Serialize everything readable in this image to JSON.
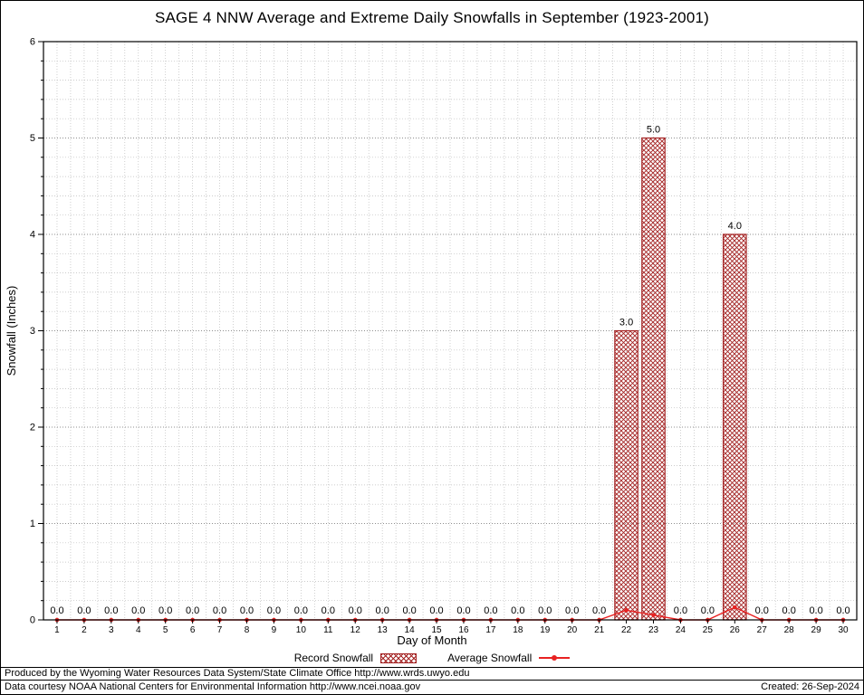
{
  "title": "SAGE 4 NNW Average and Extreme Daily Snowfalls in September (1923-2001)",
  "colors": {
    "bar_stroke": "#a32222",
    "line": "#e82222",
    "grid_minor": "#bcbcbc",
    "grid_major": "#8f8f8f",
    "axis": "#000000"
  },
  "chart_data": {
    "type": "bar",
    "title": "SAGE 4 NNW Average and Extreme Daily Snowfalls in September (1923-2001)",
    "xlabel": "Day of Month",
    "ylabel": "Snowfall (Inches)",
    "ylim": [
      0,
      6
    ],
    "y_major_step": 1,
    "y_minor_step": 0.2,
    "grid": true,
    "legend_position": "bottom",
    "categories": [
      1,
      2,
      3,
      4,
      5,
      6,
      7,
      8,
      9,
      10,
      11,
      12,
      13,
      14,
      15,
      16,
      17,
      18,
      19,
      20,
      21,
      22,
      23,
      24,
      25,
      26,
      27,
      28,
      29,
      30
    ],
    "series": [
      {
        "name": "Record Snowfall",
        "type": "bar",
        "values": [
          0,
          0,
          0,
          0,
          0,
          0,
          0,
          0,
          0,
          0,
          0,
          0,
          0,
          0,
          0,
          0,
          0,
          0,
          0,
          0,
          0,
          3,
          5,
          0,
          0,
          4,
          0,
          0,
          0,
          0
        ]
      },
      {
        "name": "Average Snowfall",
        "type": "line",
        "values": [
          0,
          0,
          0,
          0,
          0,
          0,
          0,
          0,
          0,
          0,
          0,
          0,
          0,
          0,
          0,
          0,
          0,
          0,
          0,
          0,
          0,
          0.1,
          0.05,
          0,
          0,
          0.13,
          0,
          0,
          0,
          0
        ]
      }
    ],
    "bar_labels": [
      "0.0",
      "0.0",
      "0.0",
      "0.0",
      "0.0",
      "0.0",
      "0.0",
      "0.0",
      "0.0",
      "0.0",
      "0.0",
      "0.0",
      "0.0",
      "0.0",
      "0.0",
      "0.0",
      "0.0",
      "0.0",
      "0.0",
      "0.0",
      "0.0",
      "3.0",
      "5.0",
      "0.0",
      "0.0",
      "4.0",
      "0.0",
      "0.0",
      "0.0",
      "0.0"
    ]
  },
  "footer": {
    "line1": "Produced by the Wyoming Water Resources Data System/State Climate Office http://www.wrds.uwyo.edu",
    "line2": "Data courtesy NOAA National Centers for Environmental Information http://www.ncei.noaa.gov",
    "created": "Created: 26-Sep-2024"
  }
}
